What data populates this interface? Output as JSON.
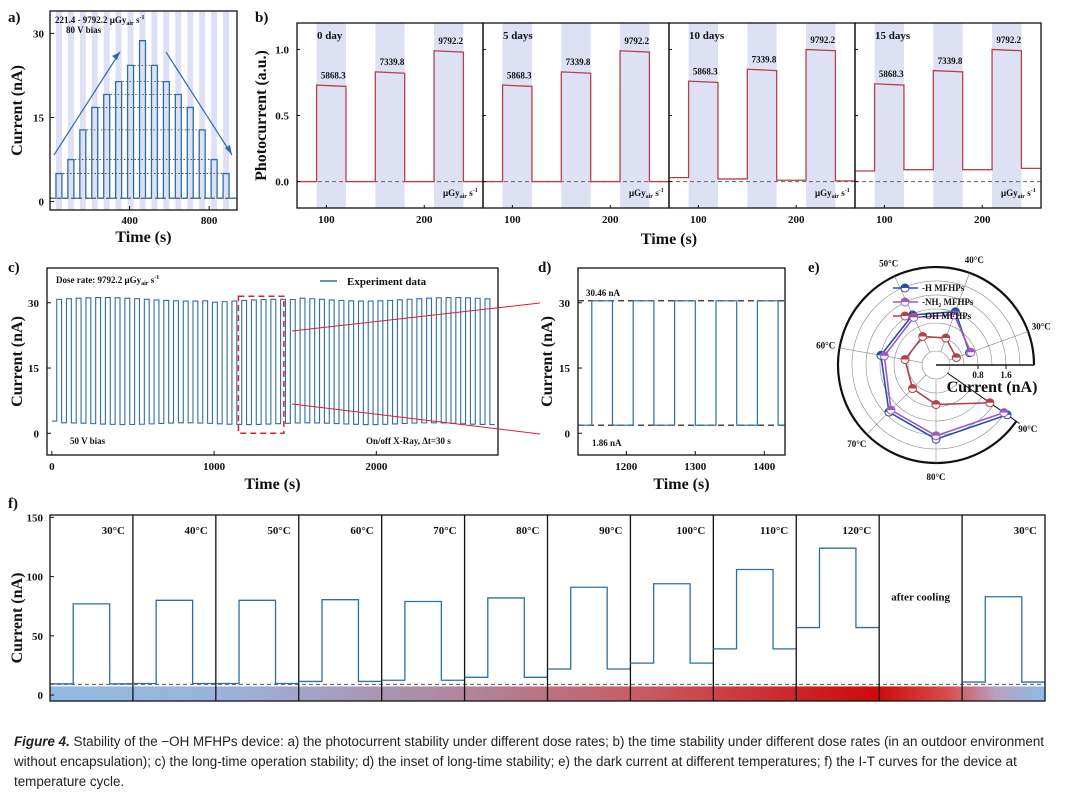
{
  "figure": {
    "caption_label": "Figure 4.",
    "caption_text": " Stability of the −OH MFHPs device: a) the photocurrent stability under different dose rates; b) the time stability under different dose rates (in an outdoor environment without encapsulation); c) the long-time operation stability; d) the inset of long-time stability; e) the dark current at different temperatures; f) the I-T curves for the device at temperature cycle."
  },
  "colors": {
    "trace_blue": "#2e6ea6",
    "trace_red": "#b5424a",
    "shade": "#dde1f3",
    "h_series": "#2b4ea8",
    "nh2_series": "#9a5cc4",
    "oh_series": "#b5424a",
    "zoom_box": "#e02020"
  },
  "chart_data": [
    {
      "id": "a",
      "panel_label": "a)",
      "type": "line",
      "xlabel": "Time (s)",
      "ylabel": "Current (nA)",
      "xlim": [
        0,
        940
      ],
      "ylim": [
        -1.5,
        34
      ],
      "xticks": [
        400,
        800
      ],
      "yticks": [
        0,
        15,
        30
      ],
      "annotation_lines": [
        "221.4 - 9792.2 μGy",
        "air",
        " s",
        "-1",
        "80 V bias"
      ],
      "dark_current": 0.6,
      "on_duration_s": 30,
      "period_s": 60,
      "first_on_s": 30,
      "pulse_peaks": [
        5,
        7.5,
        12.8,
        16.8,
        19.1,
        21.4,
        24.3,
        28.7,
        24.3,
        21.4,
        19.1,
        16.8,
        12.8,
        7.5,
        5
      ]
    },
    {
      "id": "b",
      "panel_label": "b)",
      "type": "line",
      "xlabel": "Time (s)",
      "ylabel": "Photocurrent (a.u.)",
      "xlim": [
        70,
        260
      ],
      "ylim": [
        -0.2,
        1.2
      ],
      "xticks": [
        100,
        200
      ],
      "yticks": [
        0.0,
        0.5,
        1.0
      ],
      "ytick_labels": [
        "0.0",
        "0.5",
        "1.0"
      ],
      "unit_label": [
        "μGy",
        "air",
        " s",
        "-1"
      ],
      "dose_labels": [
        "5868.3",
        "7339.8",
        "9792.2"
      ],
      "on_windows": [
        [
          90,
          120
        ],
        [
          150,
          180
        ],
        [
          210,
          240
        ]
      ],
      "subpanels": [
        {
          "label": "0 day",
          "dark": [
            0.0,
            0.0,
            0.0,
            0.0
          ],
          "on_levels": [
            0.72,
            0.82,
            0.98
          ]
        },
        {
          "label": "5 days",
          "dark": [
            0.0,
            0.0,
            0.0,
            0.0
          ],
          "on_levels": [
            0.72,
            0.82,
            0.98
          ]
        },
        {
          "label": "10 days",
          "dark": [
            0.03,
            0.02,
            0.01,
            0.005
          ],
          "on_levels": [
            0.75,
            0.84,
            0.99
          ]
        },
        {
          "label": "15 days",
          "dark": [
            0.08,
            0.09,
            0.09,
            0.1
          ],
          "on_levels": [
            0.73,
            0.83,
            0.99
          ]
        }
      ]
    },
    {
      "id": "c",
      "panel_label": "c)",
      "type": "line",
      "xlabel": "Time (s)",
      "ylabel": "Current (nA)",
      "xlim": [
        -30,
        2750
      ],
      "ylim": [
        -5,
        38
      ],
      "xticks": [
        0,
        1000,
        2000
      ],
      "yticks": [
        0,
        15,
        30
      ],
      "legend": "Experiment data",
      "legend_position": "top-right",
      "annotation_dose": [
        "Dose rate: 9792.2 μGy",
        "air",
        " s",
        "-1"
      ],
      "annotation_bias": "50 V bias",
      "annotation_onoff": "On/off X-Ray, Δt=30 s",
      "on_level_nA": 30.8,
      "off_level_nA": 2.2,
      "period_s": 60,
      "first_on_s": 30,
      "zoom_window": [
        1150,
        1430
      ]
    },
    {
      "id": "d",
      "panel_label": "d)",
      "type": "line",
      "xlabel": "Time (s)",
      "ylabel": "Current (nA)",
      "xlim": [
        1130,
        1430
      ],
      "ylim": [
        -5,
        38
      ],
      "xticks": [
        1200,
        1300,
        1400
      ],
      "yticks": [
        0,
        15,
        30
      ],
      "high_label": "30.46 nA",
      "low_label": "1.86 nA",
      "high": 30.46,
      "low": 1.86,
      "on_windows": [
        [
          1150,
          1180
        ],
        [
          1210,
          1240
        ],
        [
          1270,
          1300
        ],
        [
          1330,
          1360
        ],
        [
          1390,
          1420
        ]
      ]
    },
    {
      "id": "e",
      "panel_label": "e)",
      "type": "polar",
      "radial_label": "Current (nA)",
      "radial_ticks": [
        "0.8",
        "1.6"
      ],
      "radial_max": 2.4,
      "categories": [
        "30°C",
        "40°C",
        "50°C",
        "60°C",
        "70°C",
        "80°C",
        "90°C"
      ],
      "series": [
        {
          "name": "-H MFHPs",
          "values": [
            0.62,
            1.22,
            1.18,
            1.2,
            1.5,
            1.72,
            2.08
          ]
        },
        {
          "name": "-NH₂ MFHPs",
          "values": [
            0.66,
            1.12,
            1.1,
            1.1,
            1.42,
            1.62,
            1.97
          ]
        },
        {
          "name": "-OH MFHPs",
          "values": [
            0.22,
            0.42,
            0.5,
            0.5,
            0.55,
            0.73,
            1.48
          ]
        }
      ]
    },
    {
      "id": "f",
      "panel_label": "f)",
      "type": "line",
      "xlabel": "",
      "ylabel": "Current (nA)",
      "ylim": [
        -5,
        152
      ],
      "yticks": [
        0,
        50,
        100,
        150
      ],
      "threshold_nA": 9,
      "segments": [
        {
          "label": "30°C",
          "dark": 9.5,
          "on": 77
        },
        {
          "label": "40°C",
          "dark": 9.8,
          "on": 80
        },
        {
          "label": "50°C",
          "dark": 9.8,
          "on": 80
        },
        {
          "label": "60°C",
          "dark": 11.5,
          "on": 80.5
        },
        {
          "label": "70°C",
          "dark": 12.5,
          "on": 79
        },
        {
          "label": "80°C",
          "dark": 15,
          "on": 82
        },
        {
          "label": "90°C",
          "dark": 22,
          "on": 91
        },
        {
          "label": "100°C",
          "dark": 27,
          "on": 94
        },
        {
          "label": "110°C",
          "dark": 39,
          "on": 106
        },
        {
          "label": "120°C",
          "dark": 57,
          "on": 124
        },
        {
          "label": "after cooling",
          "dark": null,
          "on": null
        },
        {
          "label": "30°C",
          "dark": 11,
          "on": 83
        }
      ]
    }
  ]
}
